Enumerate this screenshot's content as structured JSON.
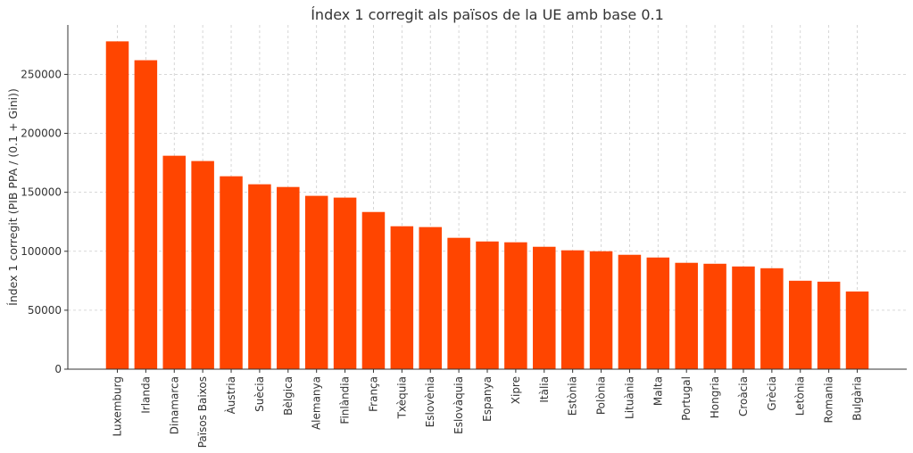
{
  "chart_data": {
    "type": "bar",
    "title": "Índex 1 corregit als països de la UE amb base 0.1",
    "xlabel": "",
    "ylabel": "Índex 1 corregit (PIB PPA / (0.1 + Gini))",
    "categories": [
      "Luxemburg",
      "Irlanda",
      "Dinamarca",
      "Països Baixos",
      "Àustria",
      "Suècia",
      "Bèlgica",
      "Alemanya",
      "Finlàndia",
      "França",
      "Txèquia",
      "Eslovènia",
      "Eslovàquia",
      "Espanya",
      "Xipre",
      "Itàlia",
      "Estònia",
      "Polònia",
      "Lituània",
      "Malta",
      "Portugal",
      "Hongria",
      "Croàcia",
      "Grècia",
      "Letònia",
      "Romania",
      "Bulgària"
    ],
    "values": [
      278000,
      262000,
      181000,
      176500,
      163600,
      156800,
      154500,
      147000,
      145500,
      133300,
      121200,
      120500,
      111400,
      108300,
      107600,
      103800,
      100800,
      100000,
      97000,
      94700,
      90200,
      89400,
      87100,
      85600,
      75000,
      74200,
      65900
    ],
    "yticks": [
      0,
      50000,
      100000,
      150000,
      200000,
      250000
    ],
    "ylim": [
      0,
      291900
    ],
    "grid": true,
    "bar_color": "#ff4500"
  }
}
